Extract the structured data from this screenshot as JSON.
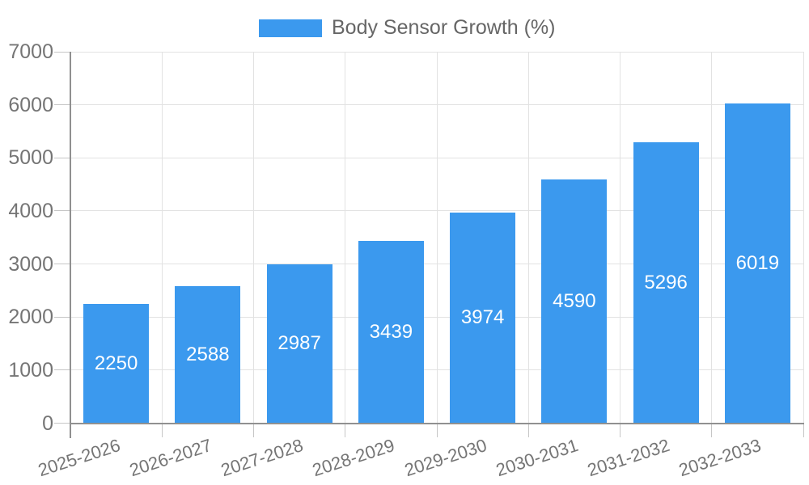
{
  "chart_data": {
    "type": "bar",
    "title": "",
    "series_name": "Body Sensor Growth (%)",
    "categories": [
      "2025-2026",
      "2026-2027",
      "2027-2028",
      "2028-2029",
      "2029-2030",
      "2030-2031",
      "2031-2032",
      "2032-2033"
    ],
    "values": [
      2250,
      2588,
      2987,
      3439,
      3974,
      4590,
      5296,
      6019
    ],
    "xlabel": "",
    "ylabel": "",
    "ylim": [
      0,
      7000
    ],
    "y_ticks": [
      0,
      1000,
      2000,
      3000,
      4000,
      5000,
      6000,
      7000
    ],
    "grid": true,
    "legend_position": "top",
    "colors": {
      "bar": "#3B99EE",
      "value_label": "#FFFFFF",
      "axis": "#909090",
      "gridline": "#E2E2E2",
      "tick": "#C6C6C6",
      "tick_label": "#757575",
      "legend_text": "#666666"
    }
  }
}
